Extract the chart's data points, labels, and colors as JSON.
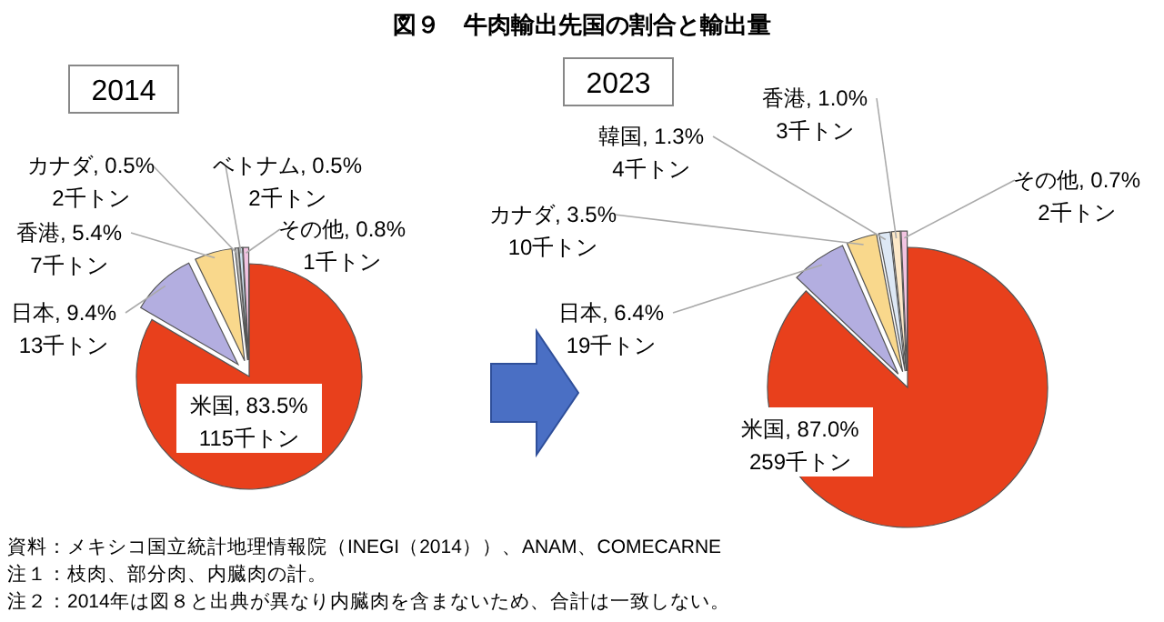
{
  "chart_data": [
    {
      "type": "pie",
      "title": "図９　牛肉輸出先国の割合と輸出量",
      "subtitle": "2014",
      "categories": [
        "米国",
        "日本",
        "香港",
        "カナダ",
        "ベトナム",
        "その他"
      ],
      "values": [
        83.5,
        9.4,
        5.4,
        0.5,
        0.5,
        0.8
      ],
      "colors": [
        "#e8401c",
        "#b3aee0",
        "#f9d88c",
        "#bfbfbf",
        "#cfe2f0",
        "#f2c4e2"
      ],
      "value_labels": [
        "83.5%\n115千トン",
        "9.4%\n13千トン",
        "5.4%\n7千トン",
        "0.5%\n2千トン",
        "0.5%\n2千トン",
        "0.8%\n1千トン"
      ],
      "annotations": [
        "資料：メキシコ国立統計地理情報院（INEGI（2014））、ANAM、COMECARNE",
        "注１：枝肉、部分肉、内臓肉の計。",
        "注２：2014年は図８と出典が異なり内臓肉を含まないため、合計は一致しない。"
      ]
    },
    {
      "type": "pie",
      "subtitle": "2023",
      "categories": [
        "米国",
        "日本",
        "カナダ",
        "韓国",
        "香港",
        "その他"
      ],
      "values": [
        87.0,
        6.4,
        3.5,
        1.3,
        1.0,
        0.7
      ],
      "colors": [
        "#e8401c",
        "#b3aee0",
        "#f9d88c",
        "#dde8f5",
        "#fde9c9",
        "#f2c4e2"
      ],
      "value_labels": [
        "87.0%\n259千トン",
        "6.4%\n19千トン",
        "3.5%\n10千トン",
        "1.3%\n4千トン",
        "1.0%\n3千トン",
        "0.7%\n2千トン"
      ]
    }
  ]
}
